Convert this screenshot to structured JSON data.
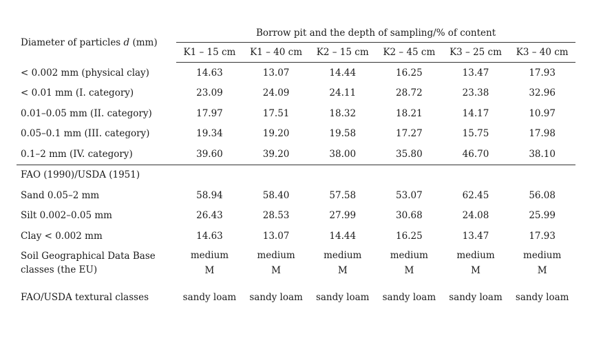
{
  "header": {
    "row_label_prefix": "Diameter of particles ",
    "row_label_var": "d",
    "row_label_suffix": " (mm)",
    "group_title": "Borrow pit and the depth of sampling/% of content",
    "columns": [
      "K1 – 15 cm",
      "K1 – 40 cm",
      "K2 – 15 cm",
      "K2 – 45 cm",
      "K3 – 25 cm",
      "K3 – 40 cm"
    ]
  },
  "rows": [
    {
      "label": "< 0.002 mm (physical clay)",
      "values": [
        "14.63",
        "13.07",
        "14.44",
        "16.25",
        "13.47",
        "17.93"
      ]
    },
    {
      "label": "< 0.01 mm (I. category)",
      "values": [
        "23.09",
        "24.09",
        "24.11",
        "28.72",
        "23.38",
        "32.96"
      ]
    },
    {
      "label": "0.01–0.05 mm (II. category)",
      "values": [
        "17.97",
        "17.51",
        "18.32",
        "18.21",
        "14.17",
        "10.97"
      ]
    },
    {
      "label": "0.05–0.1 mm (III. category)",
      "values": [
        "19.34",
        "19.20",
        "19.58",
        "17.27",
        "15.75",
        "17.98"
      ]
    },
    {
      "label": "0.1–2 mm (IV. category)",
      "values": [
        "39.60",
        "39.20",
        "38.00",
        "35.80",
        "46.70",
        "38.10"
      ]
    }
  ],
  "section": {
    "label": "FAO (1990)/USDA (1951)"
  },
  "fao_rows": [
    {
      "label": "Sand 0.05–2 mm",
      "values": [
        "58.94",
        "58.40",
        "57.58",
        "53.07",
        "62.45",
        "56.08"
      ]
    },
    {
      "label": "Silt 0.002–0.05 mm",
      "values": [
        "26.43",
        "28.53",
        "27.99",
        "30.68",
        "24.08",
        "25.99"
      ]
    },
    {
      "label": "Clay < 0.002 mm",
      "values": [
        "14.63",
        "13.07",
        "14.44",
        "16.25",
        "13.47",
        "17.93"
      ]
    }
  ],
  "sgdb": {
    "label_line1": "Soil Geographical Data Base",
    "label_line2": "classes (the EU)",
    "values_line1": [
      "medium",
      "medium",
      "medium",
      "medium",
      "medium",
      "medium"
    ],
    "values_line2": [
      "M",
      "M",
      "M",
      "M",
      "M",
      "M"
    ]
  },
  "texture": {
    "label": "FAO/USDA textural classes",
    "values": [
      "sandy loam",
      "sandy loam",
      "sandy loam",
      "sandy loam",
      "sandy loam",
      "sandy loam"
    ]
  }
}
